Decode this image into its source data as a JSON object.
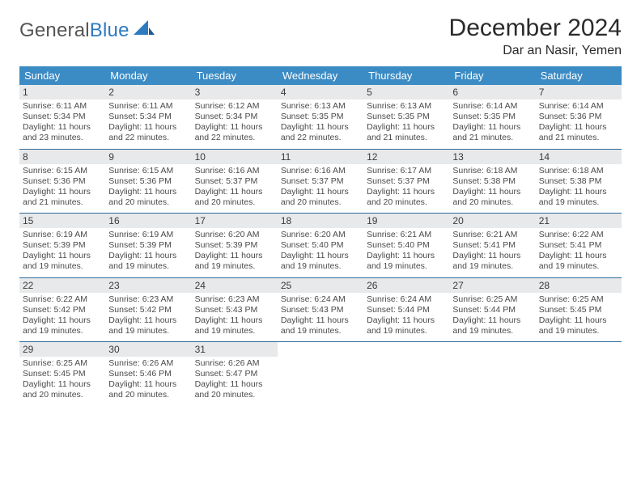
{
  "logo": {
    "part1": "General",
    "part2": "Blue"
  },
  "title": {
    "month": "December 2024",
    "location": "Dar an Nasir, Yemen"
  },
  "colors": {
    "header_blue": "#3b8bc4",
    "row_separator": "#2e6a9a",
    "daynum_bg": "#e8e9ea",
    "text": "#333333",
    "logo_dark": "#555555",
    "logo_blue": "#2d7abf",
    "background": "#ffffff"
  },
  "weekdays": [
    "Sunday",
    "Monday",
    "Tuesday",
    "Wednesday",
    "Thursday",
    "Friday",
    "Saturday"
  ],
  "weeks": [
    [
      {
        "n": "1",
        "sr": "6:11 AM",
        "ss": "5:34 PM",
        "dl": "11 hours and 23 minutes."
      },
      {
        "n": "2",
        "sr": "6:11 AM",
        "ss": "5:34 PM",
        "dl": "11 hours and 22 minutes."
      },
      {
        "n": "3",
        "sr": "6:12 AM",
        "ss": "5:34 PM",
        "dl": "11 hours and 22 minutes."
      },
      {
        "n": "4",
        "sr": "6:13 AM",
        "ss": "5:35 PM",
        "dl": "11 hours and 22 minutes."
      },
      {
        "n": "5",
        "sr": "6:13 AM",
        "ss": "5:35 PM",
        "dl": "11 hours and 21 minutes."
      },
      {
        "n": "6",
        "sr": "6:14 AM",
        "ss": "5:35 PM",
        "dl": "11 hours and 21 minutes."
      },
      {
        "n": "7",
        "sr": "6:14 AM",
        "ss": "5:36 PM",
        "dl": "11 hours and 21 minutes."
      }
    ],
    [
      {
        "n": "8",
        "sr": "6:15 AM",
        "ss": "5:36 PM",
        "dl": "11 hours and 21 minutes."
      },
      {
        "n": "9",
        "sr": "6:15 AM",
        "ss": "5:36 PM",
        "dl": "11 hours and 20 minutes."
      },
      {
        "n": "10",
        "sr": "6:16 AM",
        "ss": "5:37 PM",
        "dl": "11 hours and 20 minutes."
      },
      {
        "n": "11",
        "sr": "6:16 AM",
        "ss": "5:37 PM",
        "dl": "11 hours and 20 minutes."
      },
      {
        "n": "12",
        "sr": "6:17 AM",
        "ss": "5:37 PM",
        "dl": "11 hours and 20 minutes."
      },
      {
        "n": "13",
        "sr": "6:18 AM",
        "ss": "5:38 PM",
        "dl": "11 hours and 20 minutes."
      },
      {
        "n": "14",
        "sr": "6:18 AM",
        "ss": "5:38 PM",
        "dl": "11 hours and 19 minutes."
      }
    ],
    [
      {
        "n": "15",
        "sr": "6:19 AM",
        "ss": "5:39 PM",
        "dl": "11 hours and 19 minutes."
      },
      {
        "n": "16",
        "sr": "6:19 AM",
        "ss": "5:39 PM",
        "dl": "11 hours and 19 minutes."
      },
      {
        "n": "17",
        "sr": "6:20 AM",
        "ss": "5:39 PM",
        "dl": "11 hours and 19 minutes."
      },
      {
        "n": "18",
        "sr": "6:20 AM",
        "ss": "5:40 PM",
        "dl": "11 hours and 19 minutes."
      },
      {
        "n": "19",
        "sr": "6:21 AM",
        "ss": "5:40 PM",
        "dl": "11 hours and 19 minutes."
      },
      {
        "n": "20",
        "sr": "6:21 AM",
        "ss": "5:41 PM",
        "dl": "11 hours and 19 minutes."
      },
      {
        "n": "21",
        "sr": "6:22 AM",
        "ss": "5:41 PM",
        "dl": "11 hours and 19 minutes."
      }
    ],
    [
      {
        "n": "22",
        "sr": "6:22 AM",
        "ss": "5:42 PM",
        "dl": "11 hours and 19 minutes."
      },
      {
        "n": "23",
        "sr": "6:23 AM",
        "ss": "5:42 PM",
        "dl": "11 hours and 19 minutes."
      },
      {
        "n": "24",
        "sr": "6:23 AM",
        "ss": "5:43 PM",
        "dl": "11 hours and 19 minutes."
      },
      {
        "n": "25",
        "sr": "6:24 AM",
        "ss": "5:43 PM",
        "dl": "11 hours and 19 minutes."
      },
      {
        "n": "26",
        "sr": "6:24 AM",
        "ss": "5:44 PM",
        "dl": "11 hours and 19 minutes."
      },
      {
        "n": "27",
        "sr": "6:25 AM",
        "ss": "5:44 PM",
        "dl": "11 hours and 19 minutes."
      },
      {
        "n": "28",
        "sr": "6:25 AM",
        "ss": "5:45 PM",
        "dl": "11 hours and 19 minutes."
      }
    ],
    [
      {
        "n": "29",
        "sr": "6:25 AM",
        "ss": "5:45 PM",
        "dl": "11 hours and 20 minutes."
      },
      {
        "n": "30",
        "sr": "6:26 AM",
        "ss": "5:46 PM",
        "dl": "11 hours and 20 minutes."
      },
      {
        "n": "31",
        "sr": "6:26 AM",
        "ss": "5:47 PM",
        "dl": "11 hours and 20 minutes."
      },
      null,
      null,
      null,
      null
    ]
  ],
  "labels": {
    "sunrise": "Sunrise:",
    "sunset": "Sunset:",
    "daylight": "Daylight:"
  }
}
